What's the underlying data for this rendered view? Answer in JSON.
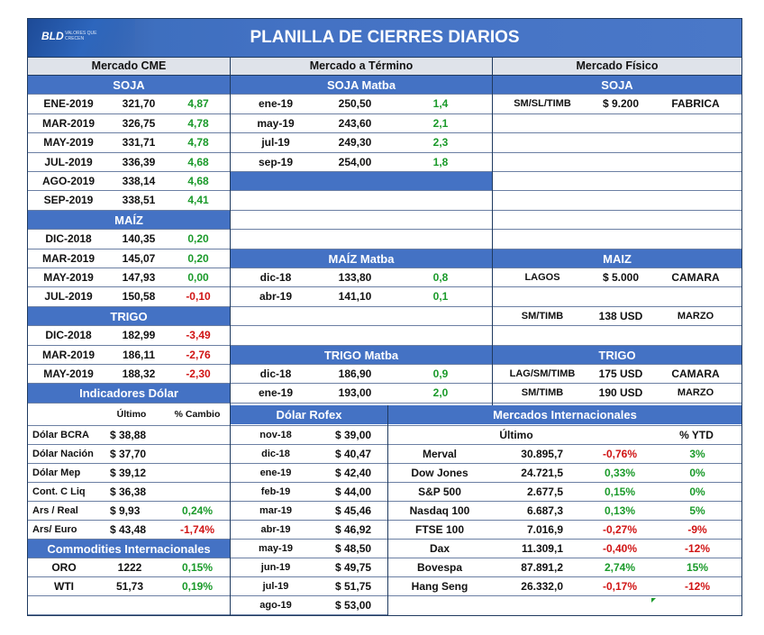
{
  "title": "PLANILLA DE CIERRES DIARIOS",
  "logo": {
    "text": "BLD",
    "tagline": "VALORES QUE CRECEN"
  },
  "headers": {
    "cme": "Mercado CME",
    "termino": "Mercado a Término",
    "fisico": "Mercado Físico"
  },
  "cme": {
    "soja_label": "SOJA",
    "soja": [
      [
        "ENE-2019",
        "321,70",
        "4,87"
      ],
      [
        "MAR-2019",
        "326,75",
        "4,78"
      ],
      [
        "MAY-2019",
        "331,71",
        "4,78"
      ],
      [
        "JUL-2019",
        "336,39",
        "4,68"
      ],
      [
        "AGO-2019",
        "338,14",
        "4,68"
      ],
      [
        "SEP-2019",
        "338,51",
        "4,41"
      ]
    ],
    "maiz_label": "MAÍZ",
    "maiz": [
      [
        "DIC-2018",
        "140,35",
        "0,20"
      ],
      [
        "MAR-2019",
        "145,07",
        "0,20"
      ],
      [
        "MAY-2019",
        "147,93",
        "0,00"
      ],
      [
        "JUL-2019",
        "150,58",
        "-0,10"
      ]
    ],
    "trigo_label": "TRIGO",
    "trigo": [
      [
        "DIC-2018",
        "182,99",
        "-3,49"
      ],
      [
        "MAR-2019",
        "186,11",
        "-2,76"
      ],
      [
        "MAY-2019",
        "188,32",
        "-2,30"
      ]
    ]
  },
  "termino": {
    "soja_label": "SOJA Matba",
    "soja": [
      [
        "ene-19",
        "250,50",
        "1,4"
      ],
      [
        "may-19",
        "243,60",
        "2,1"
      ],
      [
        "jul-19",
        "249,30",
        "2,3"
      ],
      [
        "sep-19",
        "254,00",
        "1,8"
      ]
    ],
    "maiz_label": "MAÍZ Matba",
    "maiz": [
      [
        "dic-18",
        "133,80",
        "0,8"
      ],
      [
        "abr-19",
        "141,10",
        "0,1"
      ]
    ],
    "trigo_label": "TRIGO Matba",
    "trigo": [
      [
        "dic-18",
        "186,90",
        "0,9"
      ],
      [
        "ene-19",
        "193,00",
        "2,0"
      ]
    ]
  },
  "fisico": {
    "soja_label": "SOJA",
    "soja": [
      [
        "SM/SL/TIMB",
        "$ 9.200",
        "FABRICA"
      ]
    ],
    "maiz_label": "MAIZ",
    "maiz": [
      [
        "LAGOS",
        "$ 5.000",
        "CAMARA"
      ],
      [
        "SM/TIMB",
        "138 USD",
        "MARZO"
      ]
    ],
    "trigo_label": "TRIGO",
    "trigo": [
      [
        "LAG/SM/TIMB",
        "175 USD",
        "CAMARA"
      ],
      [
        "SM/TIMB",
        "190 USD",
        "MARZO"
      ]
    ]
  },
  "dolar": {
    "label": "Indicadores Dólar",
    "col_ultimo": "Último",
    "col_cambio": "% Cambio",
    "rows": [
      [
        "Dólar BCRA",
        "$ 38,88",
        ""
      ],
      [
        "Dólar Nación",
        "$ 37,70",
        ""
      ],
      [
        "Dólar Mep",
        "$ 39,12",
        ""
      ],
      [
        "Cont. C Liq",
        "$ 36,38",
        ""
      ],
      [
        "Ars / Real",
        "$ 9,93",
        "0,24%"
      ],
      [
        "Ars/ Euro",
        "$ 43,48",
        "-1,74%"
      ]
    ]
  },
  "commodities": {
    "label": "Commodities Internacionales",
    "rows": [
      [
        "ORO",
        "1222",
        "0,15%"
      ],
      [
        "WTI",
        "51,73",
        "0,19%"
      ]
    ]
  },
  "rofex": {
    "label": "Dólar Rofex",
    "rows": [
      [
        "nov-18",
        "$ 39,00"
      ],
      [
        "dic-18",
        "$ 40,47"
      ],
      [
        "ene-19",
        "$ 42,40"
      ],
      [
        "feb-19",
        "$ 44,00"
      ],
      [
        "mar-19",
        "$ 45,46"
      ],
      [
        "abr-19",
        "$ 46,92"
      ],
      [
        "may-19",
        "$ 48,50"
      ],
      [
        "jun-19",
        "$ 49,75"
      ],
      [
        "jul-19",
        "$ 51,75"
      ],
      [
        "ago-19",
        "$ 53,00"
      ]
    ]
  },
  "internacionales": {
    "label": "Mercados Internacionales",
    "col_ultimo": "Último",
    "col_ytd": "% YTD",
    "rows": [
      [
        "Merval",
        "30.895,7",
        "-0,76%",
        "3%"
      ],
      [
        "Dow Jones",
        "24.721,5",
        "0,33%",
        "0%"
      ],
      [
        "S&P 500",
        "2.677,5",
        "0,15%",
        "0%"
      ],
      [
        "Nasdaq 100",
        "6.687,3",
        "0,13%",
        "5%"
      ],
      [
        "FTSE 100",
        "7.016,9",
        "-0,27%",
        "-9%"
      ],
      [
        "Dax",
        "11.309,1",
        "-0,40%",
        "-12%"
      ],
      [
        "Bovespa",
        "87.891,2",
        "2,74%",
        "15%"
      ],
      [
        "Hang Seng",
        "26.332,0",
        "-0,17%",
        "-12%"
      ]
    ]
  },
  "colors": {
    "header_blue": "#4472c4",
    "positive": "#1a9a2a",
    "negative": "#d01414",
    "section_gray": "#dfe3ea"
  }
}
